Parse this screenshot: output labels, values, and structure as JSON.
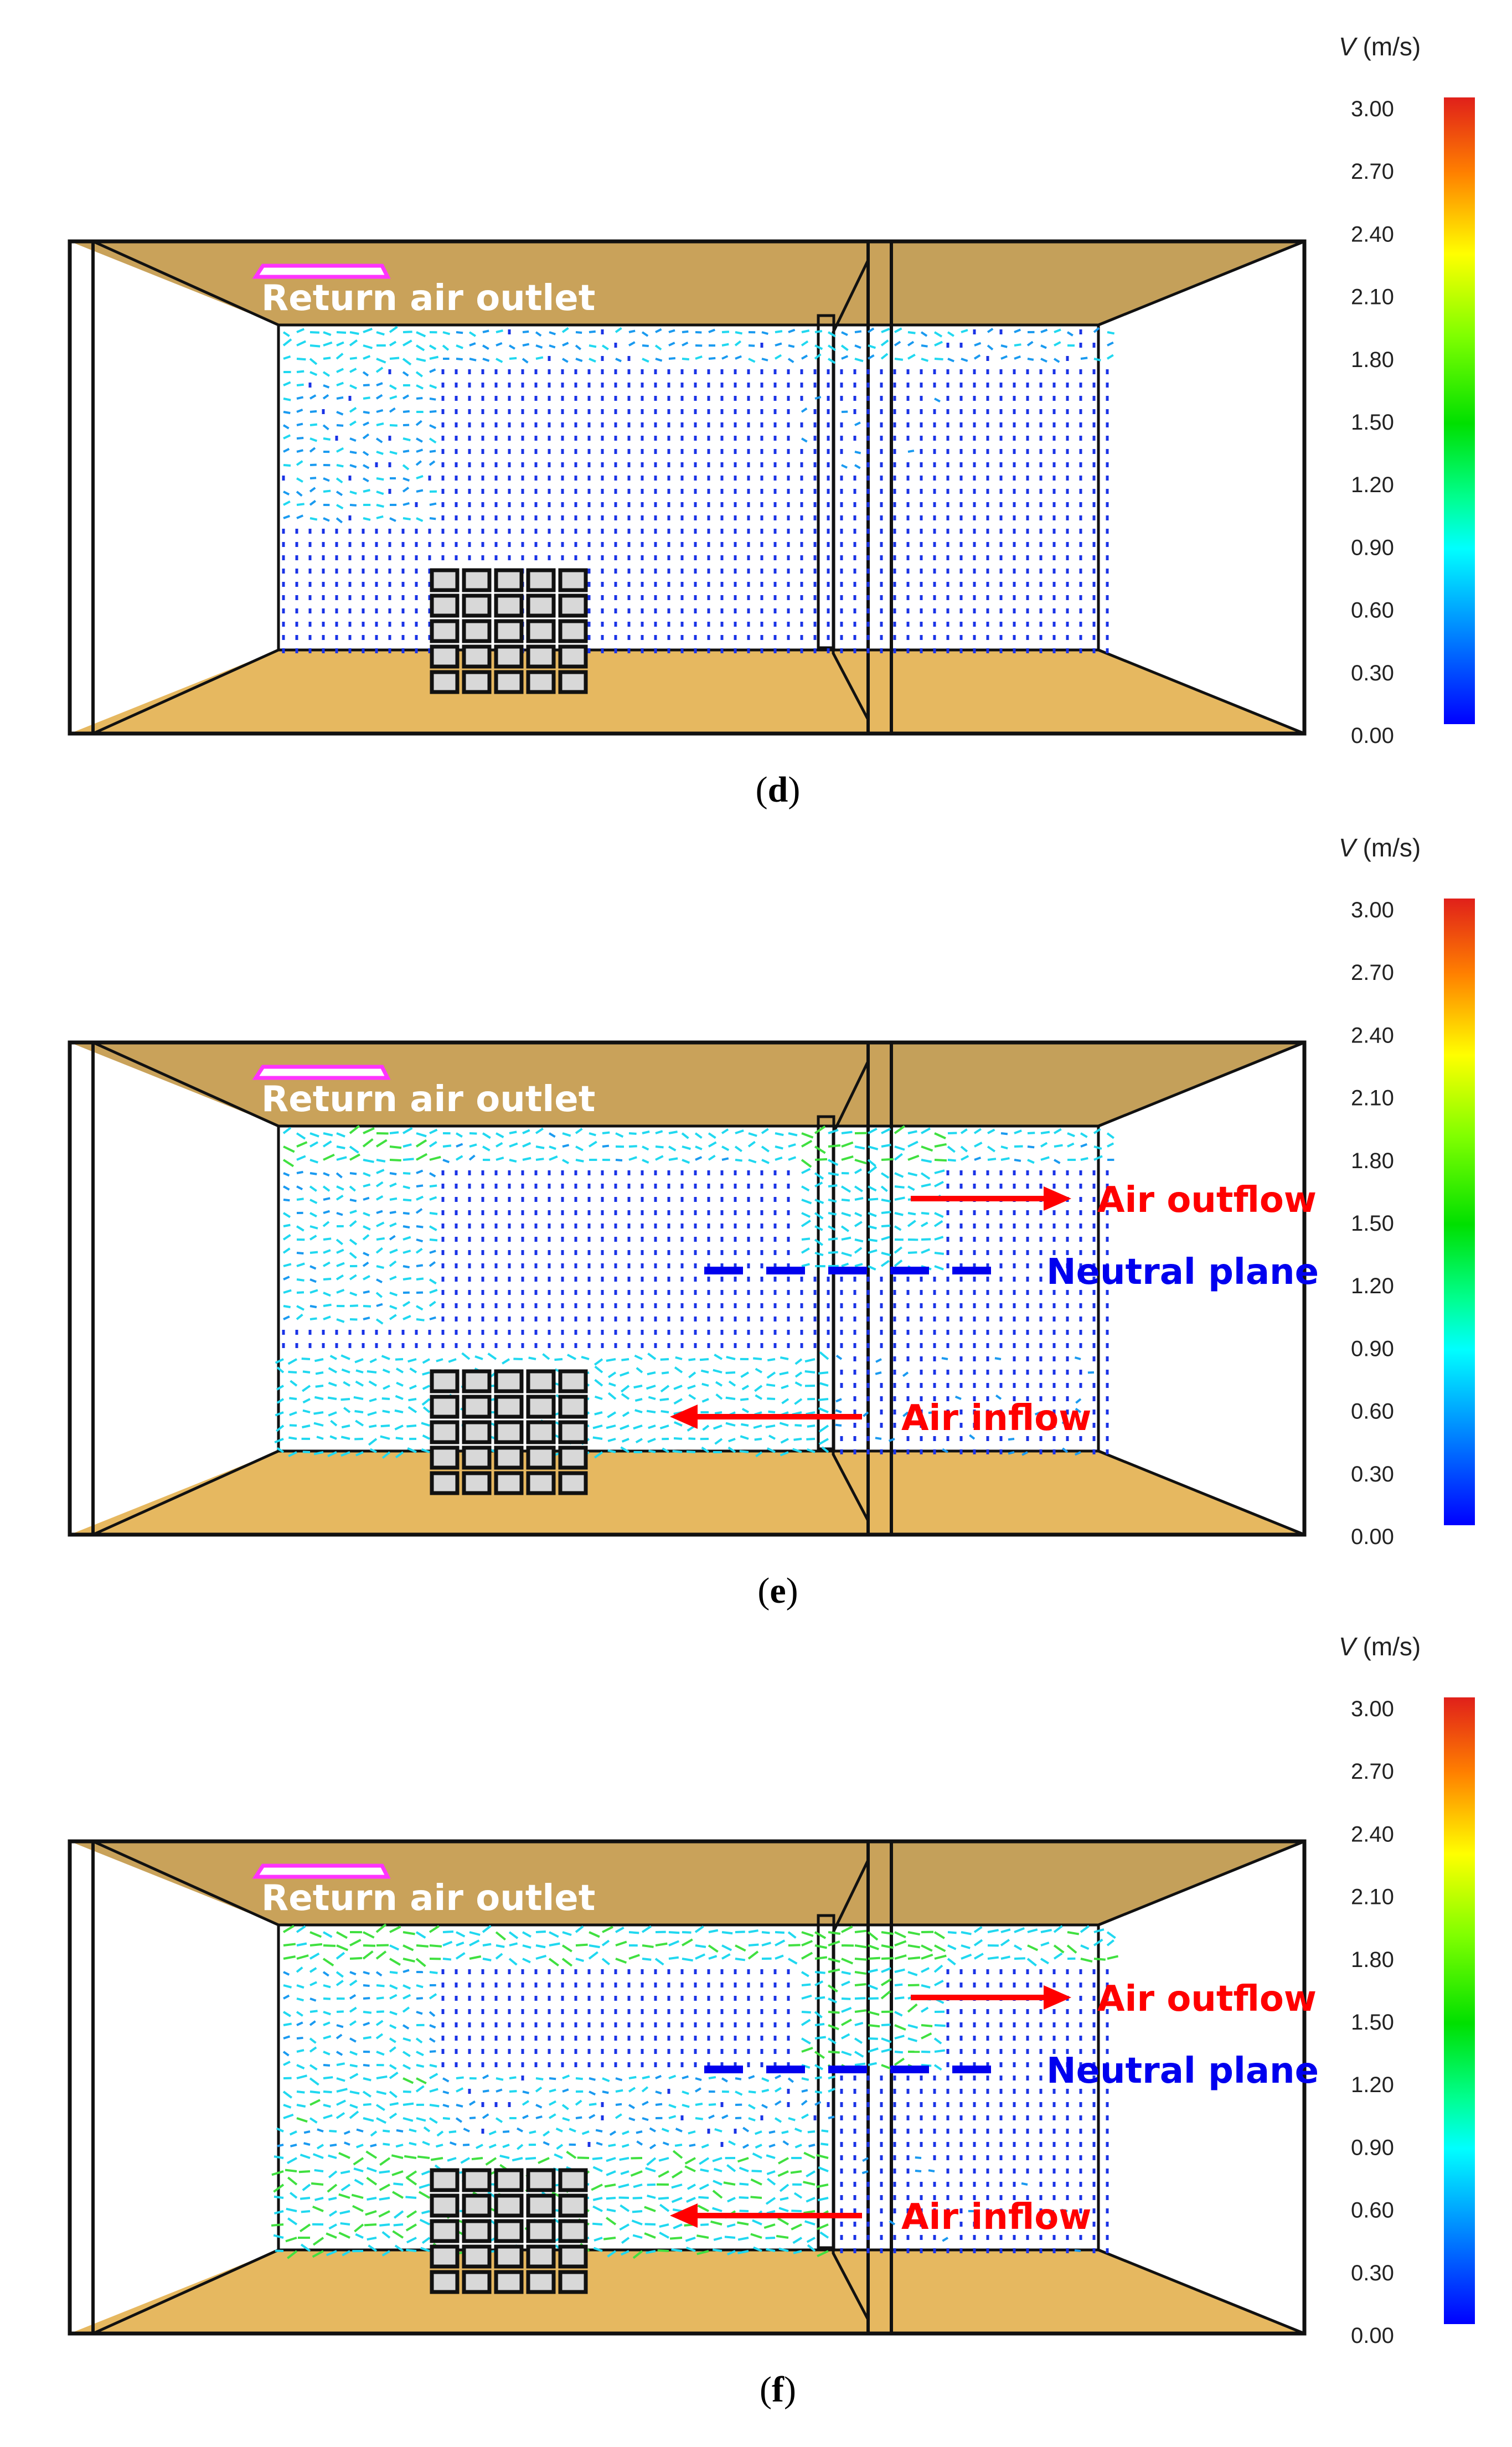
{
  "colorbar": {
    "label_italic": "V",
    "label_unit": " (m/s)",
    "ticks": [
      "3.00",
      "2.70",
      "2.40",
      "2.10",
      "1.80",
      "1.50",
      "1.20",
      "0.90",
      "0.60",
      "0.30",
      "0.00"
    ],
    "colors": [
      "#e0201a",
      "#ff8000",
      "#ffff00",
      "#80ff00",
      "#00e000",
      "#00ff80",
      "#00ffff",
      "#0080ff",
      "#0000ff"
    ]
  },
  "colors": {
    "ceiling": "#c9a25a",
    "floor": "#e6b860",
    "outlet": "#ff33ff",
    "flow_arrow": "#ff0000",
    "neutral_plane": "#0000ee",
    "vector_low": "#1a33e6",
    "vector_mid": "#20d8f0",
    "vector_high": "#40e040"
  },
  "panels": [
    {
      "caption": "d",
      "outlet_label": "Return air outlet",
      "annotations": false
    },
    {
      "caption": "e",
      "outlet_label": "Return air outlet",
      "annotations": true,
      "air_outflow": "Air outflow",
      "neutral_plane": "Neutral plane",
      "air_inflow": "Air inflow"
    },
    {
      "caption": "f",
      "outlet_label": "Return air outlet",
      "annotations": true,
      "air_outflow": "Air outflow",
      "neutral_plane": "Neutral plane",
      "air_inflow": "Air inflow"
    }
  ]
}
